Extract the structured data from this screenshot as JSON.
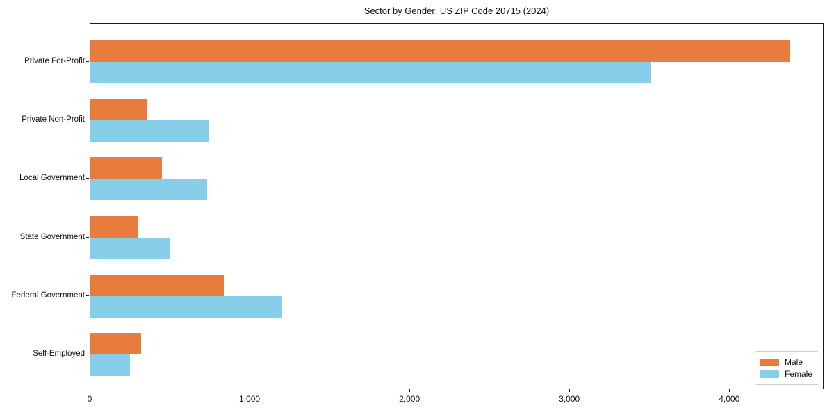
{
  "title": "Sector by Gender: US ZIP Code 20715 (2024)",
  "chart_data": {
    "type": "bar",
    "orientation": "horizontal",
    "title": "Sector by Gender: US ZIP Code 20715 (2024)",
    "xlabel": "",
    "ylabel": "",
    "categories": [
      "Private For-Profit",
      "Private Non-Profit",
      "Local Government",
      "State Government",
      "Federal Government",
      "Self-Employed"
    ],
    "series": [
      {
        "name": "Male",
        "color": "#E87B3E",
        "values": [
          4380,
          355,
          450,
          300,
          840,
          320
        ]
      },
      {
        "name": "Female",
        "color": "#87CEEB",
        "values": [
          3510,
          745,
          730,
          495,
          1200,
          250
        ]
      }
    ],
    "xlim": [
      0,
      4590
    ],
    "xticks": [
      0,
      1000,
      2000,
      3000,
      4000
    ],
    "xtick_labels": [
      "0",
      "1,000",
      "2,000",
      "3,000",
      "4,000"
    ],
    "grid": false,
    "legend_position": "lower right"
  },
  "legend": {
    "items": [
      {
        "label": "Male",
        "color": "#E87B3E"
      },
      {
        "label": "Female",
        "color": "#87CEEB"
      }
    ]
  }
}
